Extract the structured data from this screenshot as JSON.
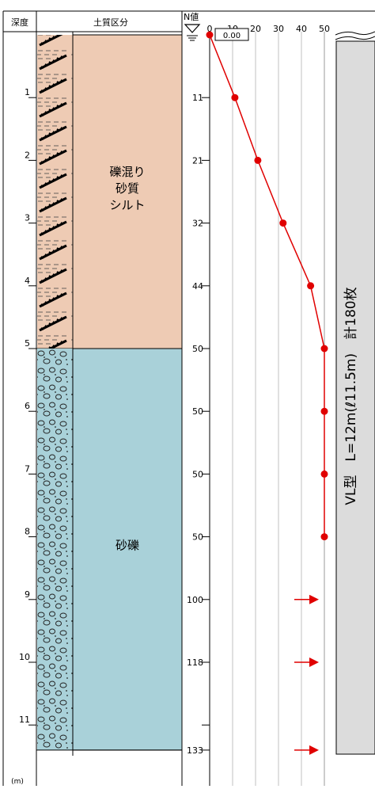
{
  "header": {
    "depth_label": "深度",
    "soil_label": "土質区分",
    "n_value_label": "N値",
    "unit_label": "(m)"
  },
  "water_level": {
    "value_label": "0.00"
  },
  "layers": [
    {
      "name_lines": [
        "礫混り",
        "砂質",
        "シルト"
      ],
      "top": 0,
      "bottom": 5.0,
      "color": "#eecbb4",
      "pattern": "silt-gravel"
    },
    {
      "name_lines": [
        "砂礫"
      ],
      "top": 5.0,
      "bottom": 11.4,
      "color": "#a9d1d9",
      "pattern": "gravel"
    }
  ],
  "depth_ticks": [
    {
      "depth": 1,
      "label": "1"
    },
    {
      "depth": 2,
      "label": "2"
    },
    {
      "depth": 3,
      "label": "3"
    },
    {
      "depth": 4,
      "label": "4"
    },
    {
      "depth": 5,
      "label": "5"
    },
    {
      "depth": 6,
      "label": "6"
    },
    {
      "depth": 7,
      "label": "7"
    },
    {
      "depth": 8,
      "label": "8"
    },
    {
      "depth": 9,
      "label": "9"
    },
    {
      "depth": 10,
      "label": "10"
    },
    {
      "depth": 11,
      "label": "11"
    }
  ],
  "chart_data": {
    "type": "line",
    "x_axis": {
      "min": 0,
      "max": 50,
      "ticks": [
        "0",
        "10",
        "20",
        "30",
        "40",
        "50"
      ]
    },
    "y_axis": {
      "min": 0,
      "max": 12,
      "inverted": true
    },
    "n_readings": [
      {
        "depth": 0.0,
        "n": 0,
        "label": ""
      },
      {
        "depth": 1.0,
        "n": 11,
        "label": "11"
      },
      {
        "depth": 2.0,
        "n": 21,
        "label": "21"
      },
      {
        "depth": 3.0,
        "n": 32,
        "label": "32"
      },
      {
        "depth": 4.0,
        "n": 44,
        "label": "44"
      },
      {
        "depth": 5.0,
        "n": 50,
        "label": "50"
      },
      {
        "depth": 6.0,
        "n": 50,
        "label": "50"
      },
      {
        "depth": 7.0,
        "n": 50,
        "label": "50"
      },
      {
        "depth": 8.0,
        "n": 50,
        "label": "50"
      }
    ],
    "overflow_readings": [
      {
        "depth": 9.0,
        "label": "100"
      },
      {
        "depth": 10.0,
        "label": "118"
      },
      {
        "depth": 11.4,
        "label": "133"
      }
    ],
    "series_color": "#e00000",
    "grid": true
  },
  "pile": {
    "label": "VL型　L=12m(ℓ11.5m)　計180枚",
    "fill": "#dcdcdc"
  }
}
